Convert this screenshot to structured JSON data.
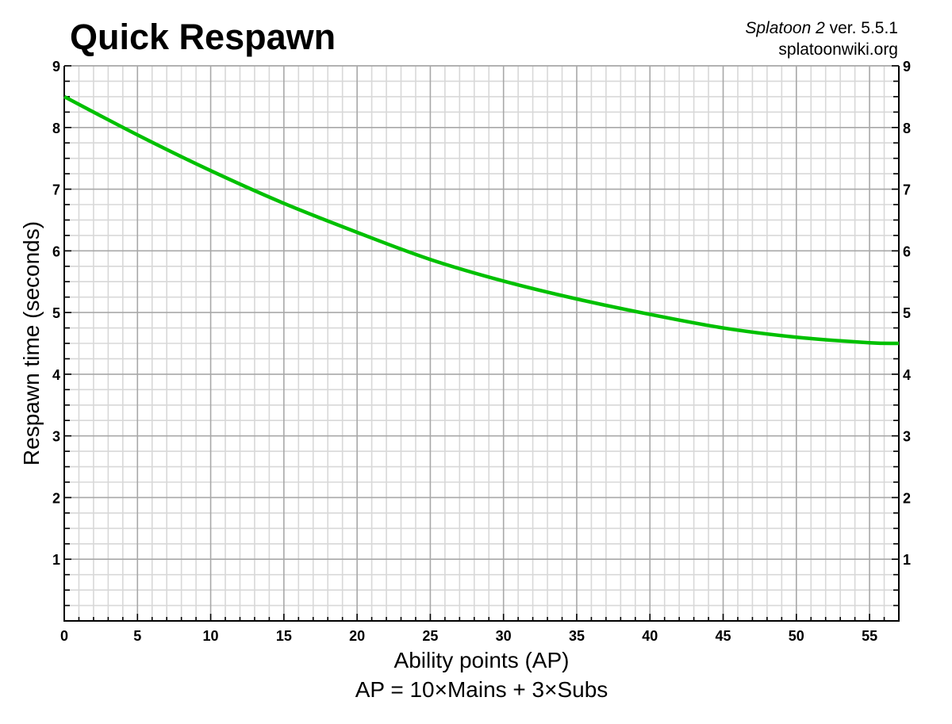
{
  "header": {
    "title": "Quick Respawn",
    "credit_game": "Splatoon 2",
    "credit_version": " ver. 5.5.1",
    "credit_site": "splatoonwiki.org"
  },
  "axes": {
    "xlabel": "Ability points (AP)",
    "xlabel_formula": "AP = 10×Mains + 3×Subs",
    "ylabel": "Respawn time (seconds)"
  },
  "colors": {
    "line": "#00c000",
    "major_grid": "#a8a8a8",
    "minor_grid": "#d8d8d8",
    "axis": "#000000"
  },
  "chart_data": {
    "type": "line",
    "title": "Quick Respawn",
    "subtitle": "Splatoon 2 ver. 5.5.1 — splatoonwiki.org",
    "xlabel": "Ability points (AP)",
    "xlabel_secondary": "AP = 10×Mains + 3×Subs",
    "ylabel": "Respawn time (seconds)",
    "xlim": [
      0,
      57
    ],
    "ylim": [
      0,
      9
    ],
    "x_ticks": [
      0,
      5,
      10,
      15,
      20,
      25,
      30,
      35,
      40,
      45,
      50,
      55
    ],
    "y_ticks_left": [
      1,
      2,
      3,
      4,
      5,
      6,
      7,
      8,
      9
    ],
    "y_ticks_right": [
      1,
      2,
      3,
      4,
      5,
      6,
      7,
      8,
      9
    ],
    "grid": true,
    "minor_x_step": 1,
    "minor_y_step": 0.25,
    "legend": null,
    "series": [
      {
        "name": "Respawn time",
        "x": [
          0,
          5,
          10,
          15,
          20,
          25,
          30,
          35,
          40,
          45,
          50,
          55,
          57
        ],
        "values": [
          8.5,
          7.88,
          7.3,
          6.77,
          6.3,
          5.86,
          5.51,
          5.22,
          4.97,
          4.75,
          4.6,
          4.51,
          4.5
        ]
      }
    ]
  }
}
